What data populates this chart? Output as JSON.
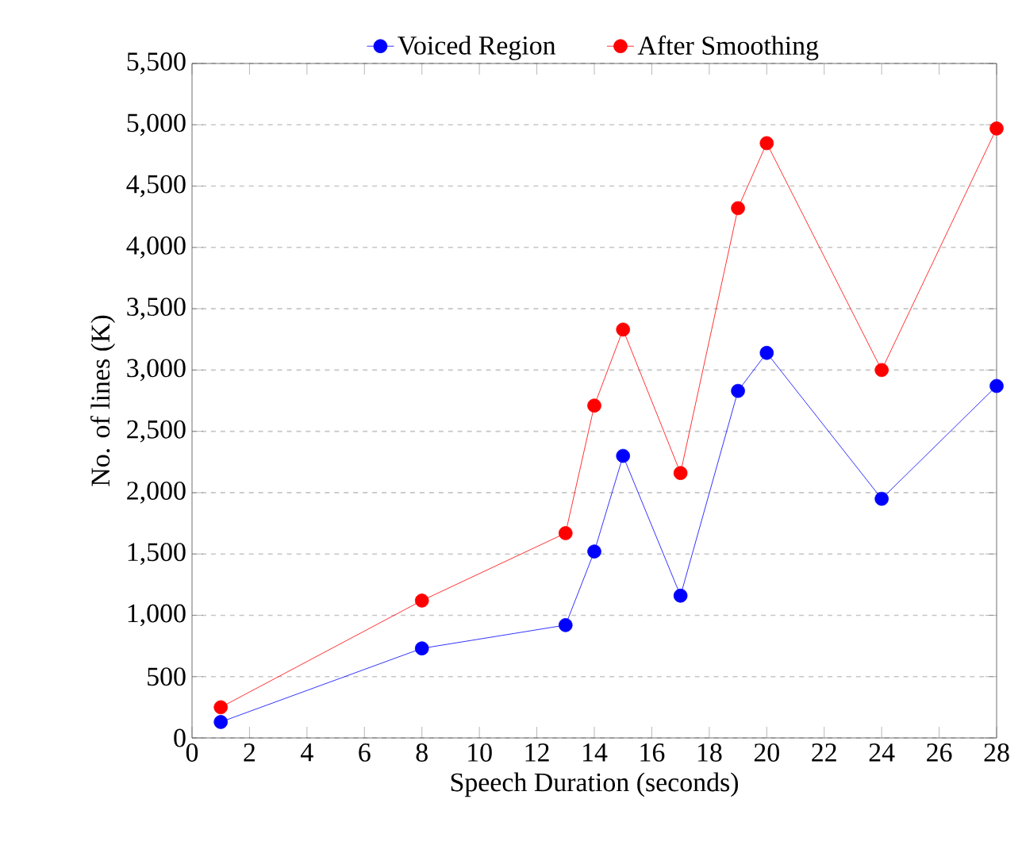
{
  "chart_data": {
    "type": "line",
    "xlabel": "Speech Duration (seconds)",
    "ylabel": "No. of lines (K)",
    "x": [
      1,
      8,
      13,
      14,
      15,
      17,
      19,
      20,
      24,
      28
    ],
    "series": [
      {
        "name": "Voiced Region",
        "color": "#0000ff",
        "values": [
          130,
          730,
          920,
          1520,
          2300,
          1160,
          2830,
          3140,
          1950,
          2870
        ]
      },
      {
        "name": "After Smoothing",
        "color": "#ff0000",
        "values": [
          250,
          1120,
          1670,
          2710,
          3330,
          2160,
          4320,
          4850,
          3000,
          4970
        ]
      }
    ],
    "xlim": [
      0,
      28
    ],
    "ylim": [
      0,
      5500
    ],
    "xticks": [
      0,
      2,
      4,
      6,
      8,
      10,
      12,
      14,
      16,
      18,
      20,
      22,
      24,
      26,
      28
    ],
    "yticks": [
      0,
      500,
      {
        "value": 1000,
        "label": "1,000"
      },
      {
        "value": 1500,
        "label": "1,500"
      },
      {
        "value": 2000,
        "label": "2,000"
      },
      {
        "value": 2500,
        "label": "2,500"
      },
      {
        "value": 3000,
        "label": "3,000"
      },
      {
        "value": 3500,
        "label": "3,500"
      },
      {
        "value": 4000,
        "label": "4,000"
      },
      {
        "value": 4500,
        "label": "4,500"
      },
      {
        "value": 5000,
        "label": "5,000"
      },
      {
        "value": 5500,
        "label": "5,500"
      }
    ],
    "grid": "y",
    "legend": "top",
    "marker": "circle",
    "line_style": "solid"
  }
}
